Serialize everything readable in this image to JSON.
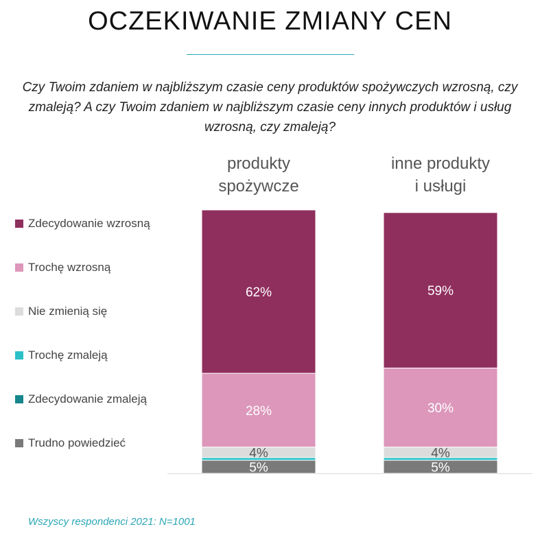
{
  "title": "OCZEKIWANIE ZMIANY CEN",
  "question": "Czy Twoim zdaniem w najbliższym czasie ceny produktów spożywczych wzrosną, czy zmaleją? A czy Twoim zdaniem w najbliższym czasie ceny innych produktów i usług wzrosną, czy zmaleją?",
  "footnote": "Wszyscy respondenci 2021: N=1001",
  "chart_data": {
    "type": "bar",
    "stacked": true,
    "orientation": "vertical",
    "categories": [
      [
        "produkty",
        "spożywcze"
      ],
      [
        "inne produkty",
        "i usługi"
      ]
    ],
    "ylim": [
      0,
      100
    ],
    "grid": false,
    "legend_position": "left",
    "series": [
      {
        "name": "Zdecydowanie wzrosną",
        "color": "#8f2f5e",
        "values": [
          62,
          59
        ],
        "labels": [
          "62%",
          "59%"
        ]
      },
      {
        "name": "Trochę wzrosną",
        "color": "#dc97bb",
        "values": [
          28,
          30
        ],
        "labels": [
          "28%",
          "30%"
        ]
      },
      {
        "name": "Nie zmienią się",
        "color": "#dcdcdc",
        "values": [
          4,
          4
        ],
        "labels": [
          "4%",
          "4%"
        ]
      },
      {
        "name": "Trochę zmaleją",
        "color": "#2bc0c8",
        "values": [
          1,
          1
        ],
        "labels": [
          "",
          ""
        ]
      },
      {
        "name": "Zdecydowanie zmaleją",
        "color": "#17868c",
        "values": [
          0,
          0
        ],
        "labels": [
          "",
          ""
        ]
      },
      {
        "name": "Trudno powiedzieć",
        "color": "#7a7a7a",
        "values": [
          5,
          5
        ],
        "labels": [
          "5%",
          "5%"
        ]
      }
    ]
  }
}
